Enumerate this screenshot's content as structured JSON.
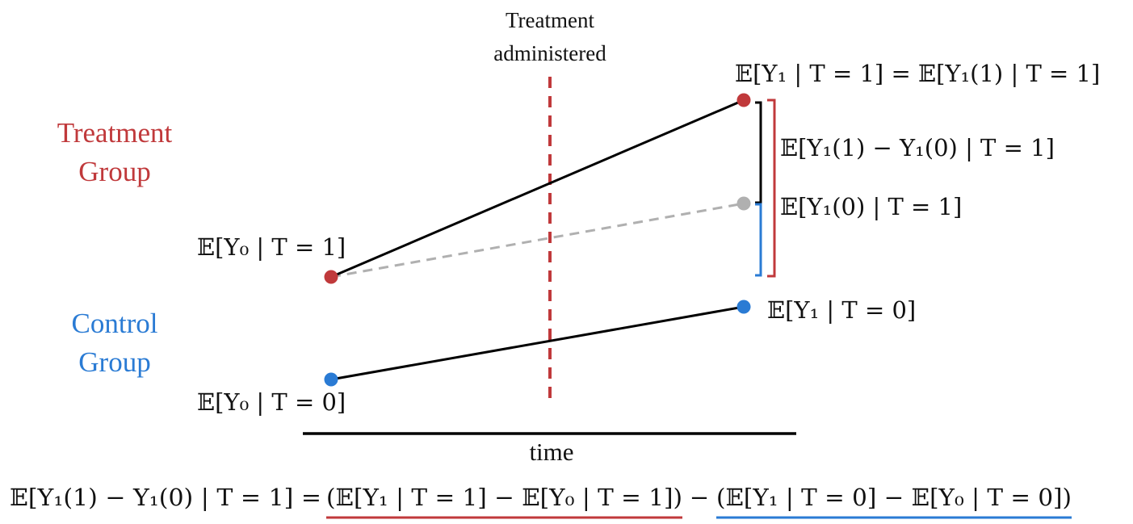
{
  "treatment_marker": {
    "label_line1": "Treatment",
    "label_line2": "administered"
  },
  "groups": {
    "treatment_line1": "Treatment",
    "treatment_line2": "Group",
    "control_line1": "Control",
    "control_line2": "Group"
  },
  "labels": {
    "y0_treat": "𝔼[Y₀ | T = 1]",
    "y1_treat": "𝔼[Y₁ | T = 1] = 𝔼[Y₁(1) | T = 1]",
    "effect": "𝔼[Y₁(1) − Y₁(0) | T = 1]",
    "counterfactual": "𝔼[Y₁(0) | T = 1]",
    "y1_control": "𝔼[Y₁ | T = 0]",
    "y0_control": "𝔼[Y₀ | T = 0]"
  },
  "axis": {
    "x_label": "time"
  },
  "equation": {
    "lhs": "𝔼[Y₁(1) − Y₁(0) | T = 1] =",
    "term1": "(𝔼[Y₁ | T = 1] − 𝔼[Y₀ | T = 1])",
    "minus": "−",
    "term2": "(𝔼[Y₁ | T = 0] − 𝔼[Y₀ | T = 0])"
  },
  "colors": {
    "treatment": "#c0393b",
    "control": "#2a7bd4",
    "counterfactual": "#b0b0b0",
    "line": "#000000"
  }
}
